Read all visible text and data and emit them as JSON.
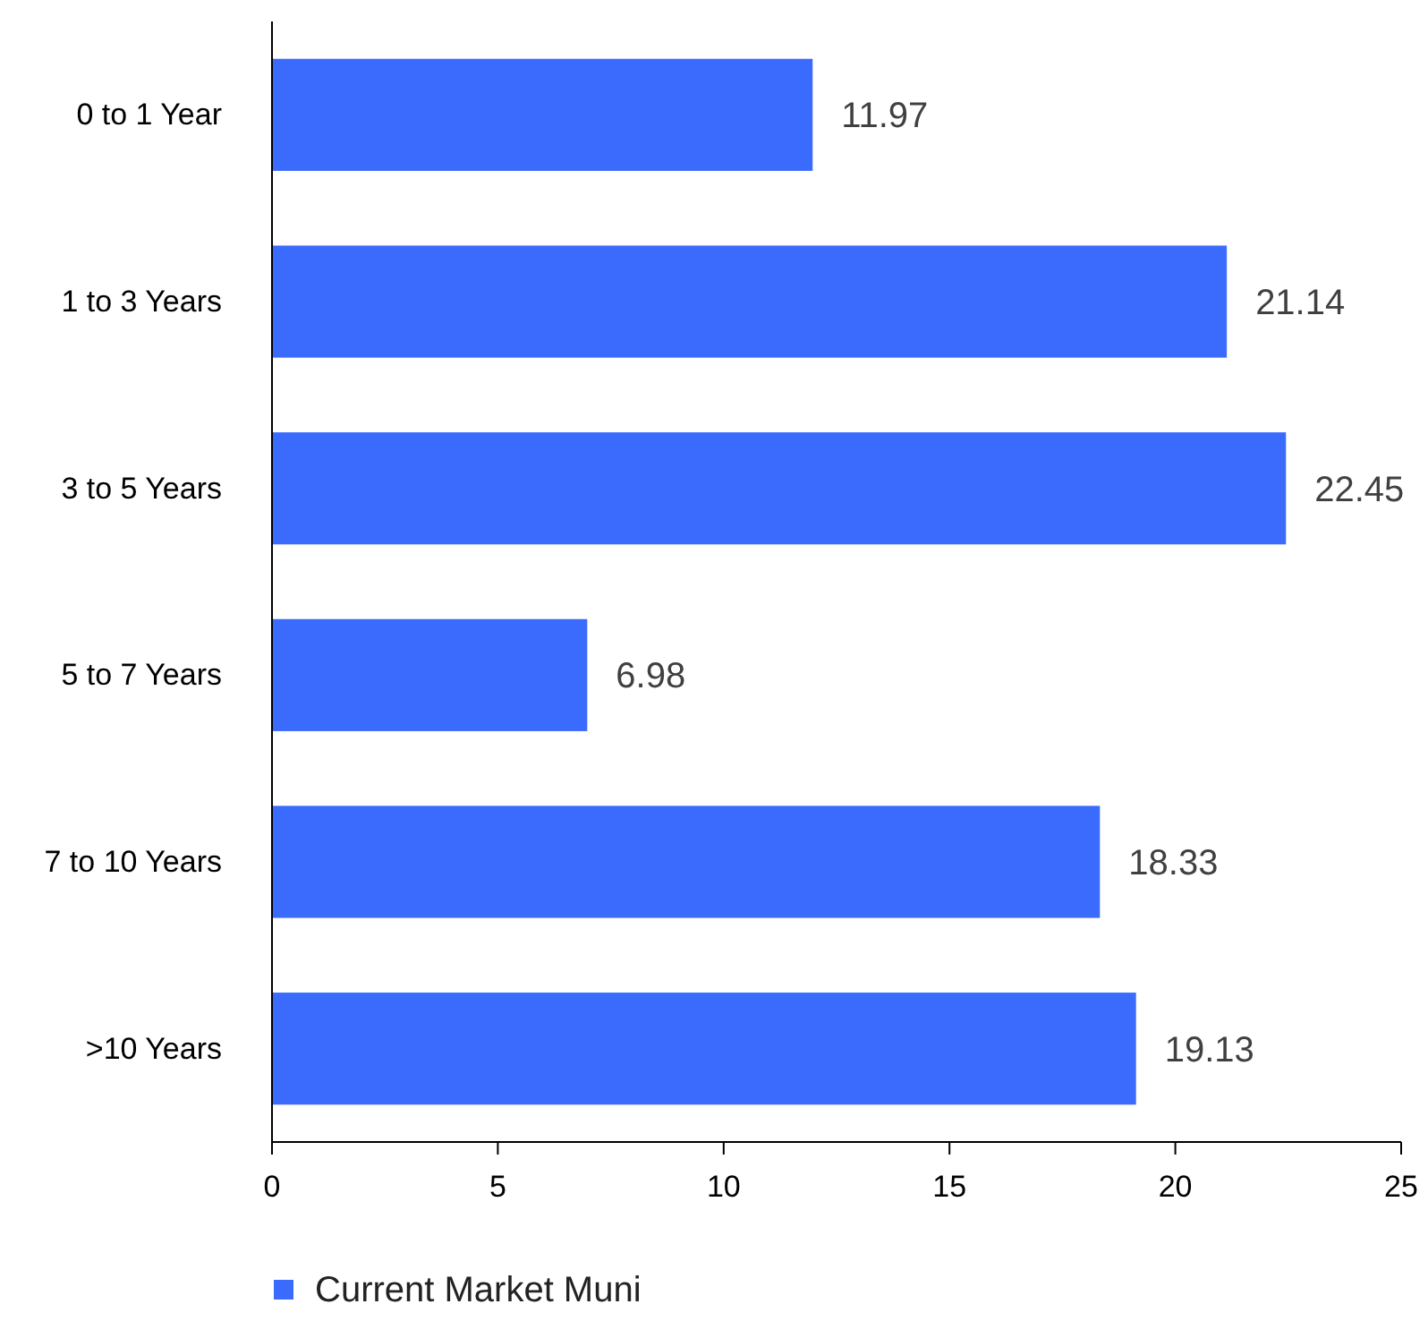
{
  "chart_data": {
    "type": "bar",
    "orientation": "horizontal",
    "categories": [
      "0 to 1 Year",
      "1 to 3 Years",
      "3 to 5 Years",
      "5 to 7 Years",
      "7 to 10 Years",
      ">10 Years"
    ],
    "series": [
      {
        "name": "Current Market Muni",
        "color": "#3b6bfd",
        "values": [
          11.97,
          21.14,
          22.45,
          6.98,
          18.33,
          19.13
        ]
      }
    ],
    "xlim": [
      0,
      25
    ],
    "xticks": [
      0,
      5,
      10,
      15,
      20,
      25
    ],
    "data_labels": true,
    "legend": "bottom",
    "grid": false
  }
}
